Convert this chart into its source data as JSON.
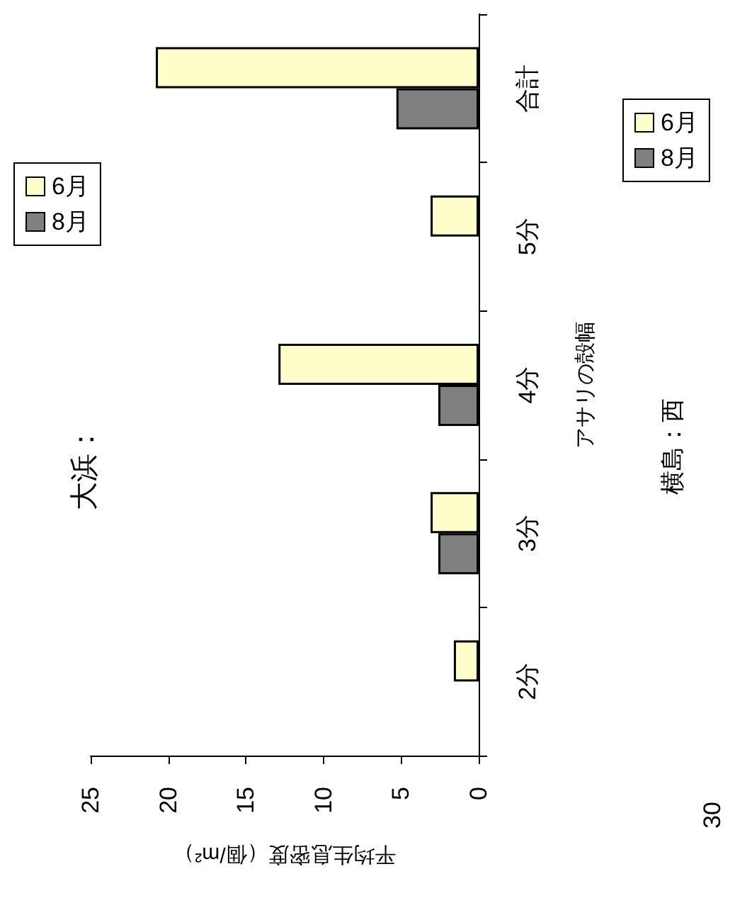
{
  "chart_data": {
    "type": "bar",
    "orientation": "horizontal",
    "title": "大浜：",
    "xlabel": "平均生息密度（個/m²）",
    "ylabel": "アサリの殻幅",
    "categories": [
      "合計",
      "5分",
      "4分",
      "3分",
      "2分"
    ],
    "series": [
      {
        "name": "6月",
        "color": "#ffffcc",
        "values": [
          20.8,
          3.1,
          12.9,
          3.1,
          1.6
        ]
      },
      {
        "name": "8月",
        "color": "#808080",
        "values": [
          5.3,
          null,
          2.6,
          2.6,
          null
        ]
      }
    ],
    "xlim": [
      25,
      0
    ],
    "xticks": [
      25,
      20,
      15,
      10,
      5,
      0
    ],
    "grid": false,
    "legend": "top right",
    "annotations": [
      "横島：西",
      "30"
    ]
  }
}
